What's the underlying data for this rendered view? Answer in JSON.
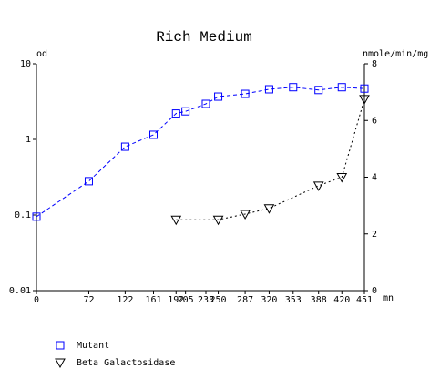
{
  "chart_data": {
    "type": "line",
    "title": "Rich Medium",
    "x_label": "mn",
    "y_label": "od",
    "y2_label": "nmole/min/mg",
    "xlim": [
      0,
      451
    ],
    "xticks": [
      0,
      72,
      122,
      161,
      192,
      205,
      233,
      250,
      287,
      320,
      353,
      388,
      420,
      451
    ],
    "ylim": [
      0.01,
      10
    ],
    "yticks": [
      0.01,
      0.1,
      1,
      10
    ],
    "yscale": "log",
    "y2lim": [
      0,
      8
    ],
    "y2ticks": [
      0,
      2,
      4,
      6,
      8
    ],
    "series": [
      {
        "name": "Mutant",
        "color": "#0000ff",
        "marker": "square",
        "line": "dashed",
        "x": [
          0,
          72,
          122,
          161,
          192,
          205,
          233,
          250,
          287,
          320,
          353,
          388,
          420,
          451
        ],
        "values": [
          0.095,
          0.28,
          0.8,
          1.15,
          2.2,
          2.35,
          2.95,
          3.68,
          4.0,
          4.6,
          4.9,
          4.5,
          4.9,
          4.7
        ]
      },
      {
        "name": "Beta Galactosidase",
        "color": "#000000",
        "marker": "triangle-down",
        "line": "dotted",
        "axis": "y2",
        "x": [
          192,
          250,
          287,
          320,
          388,
          420,
          451
        ],
        "values": [
          2.5,
          2.5,
          2.7,
          2.9,
          3.7,
          4.0,
          6.75
        ]
      }
    ]
  }
}
